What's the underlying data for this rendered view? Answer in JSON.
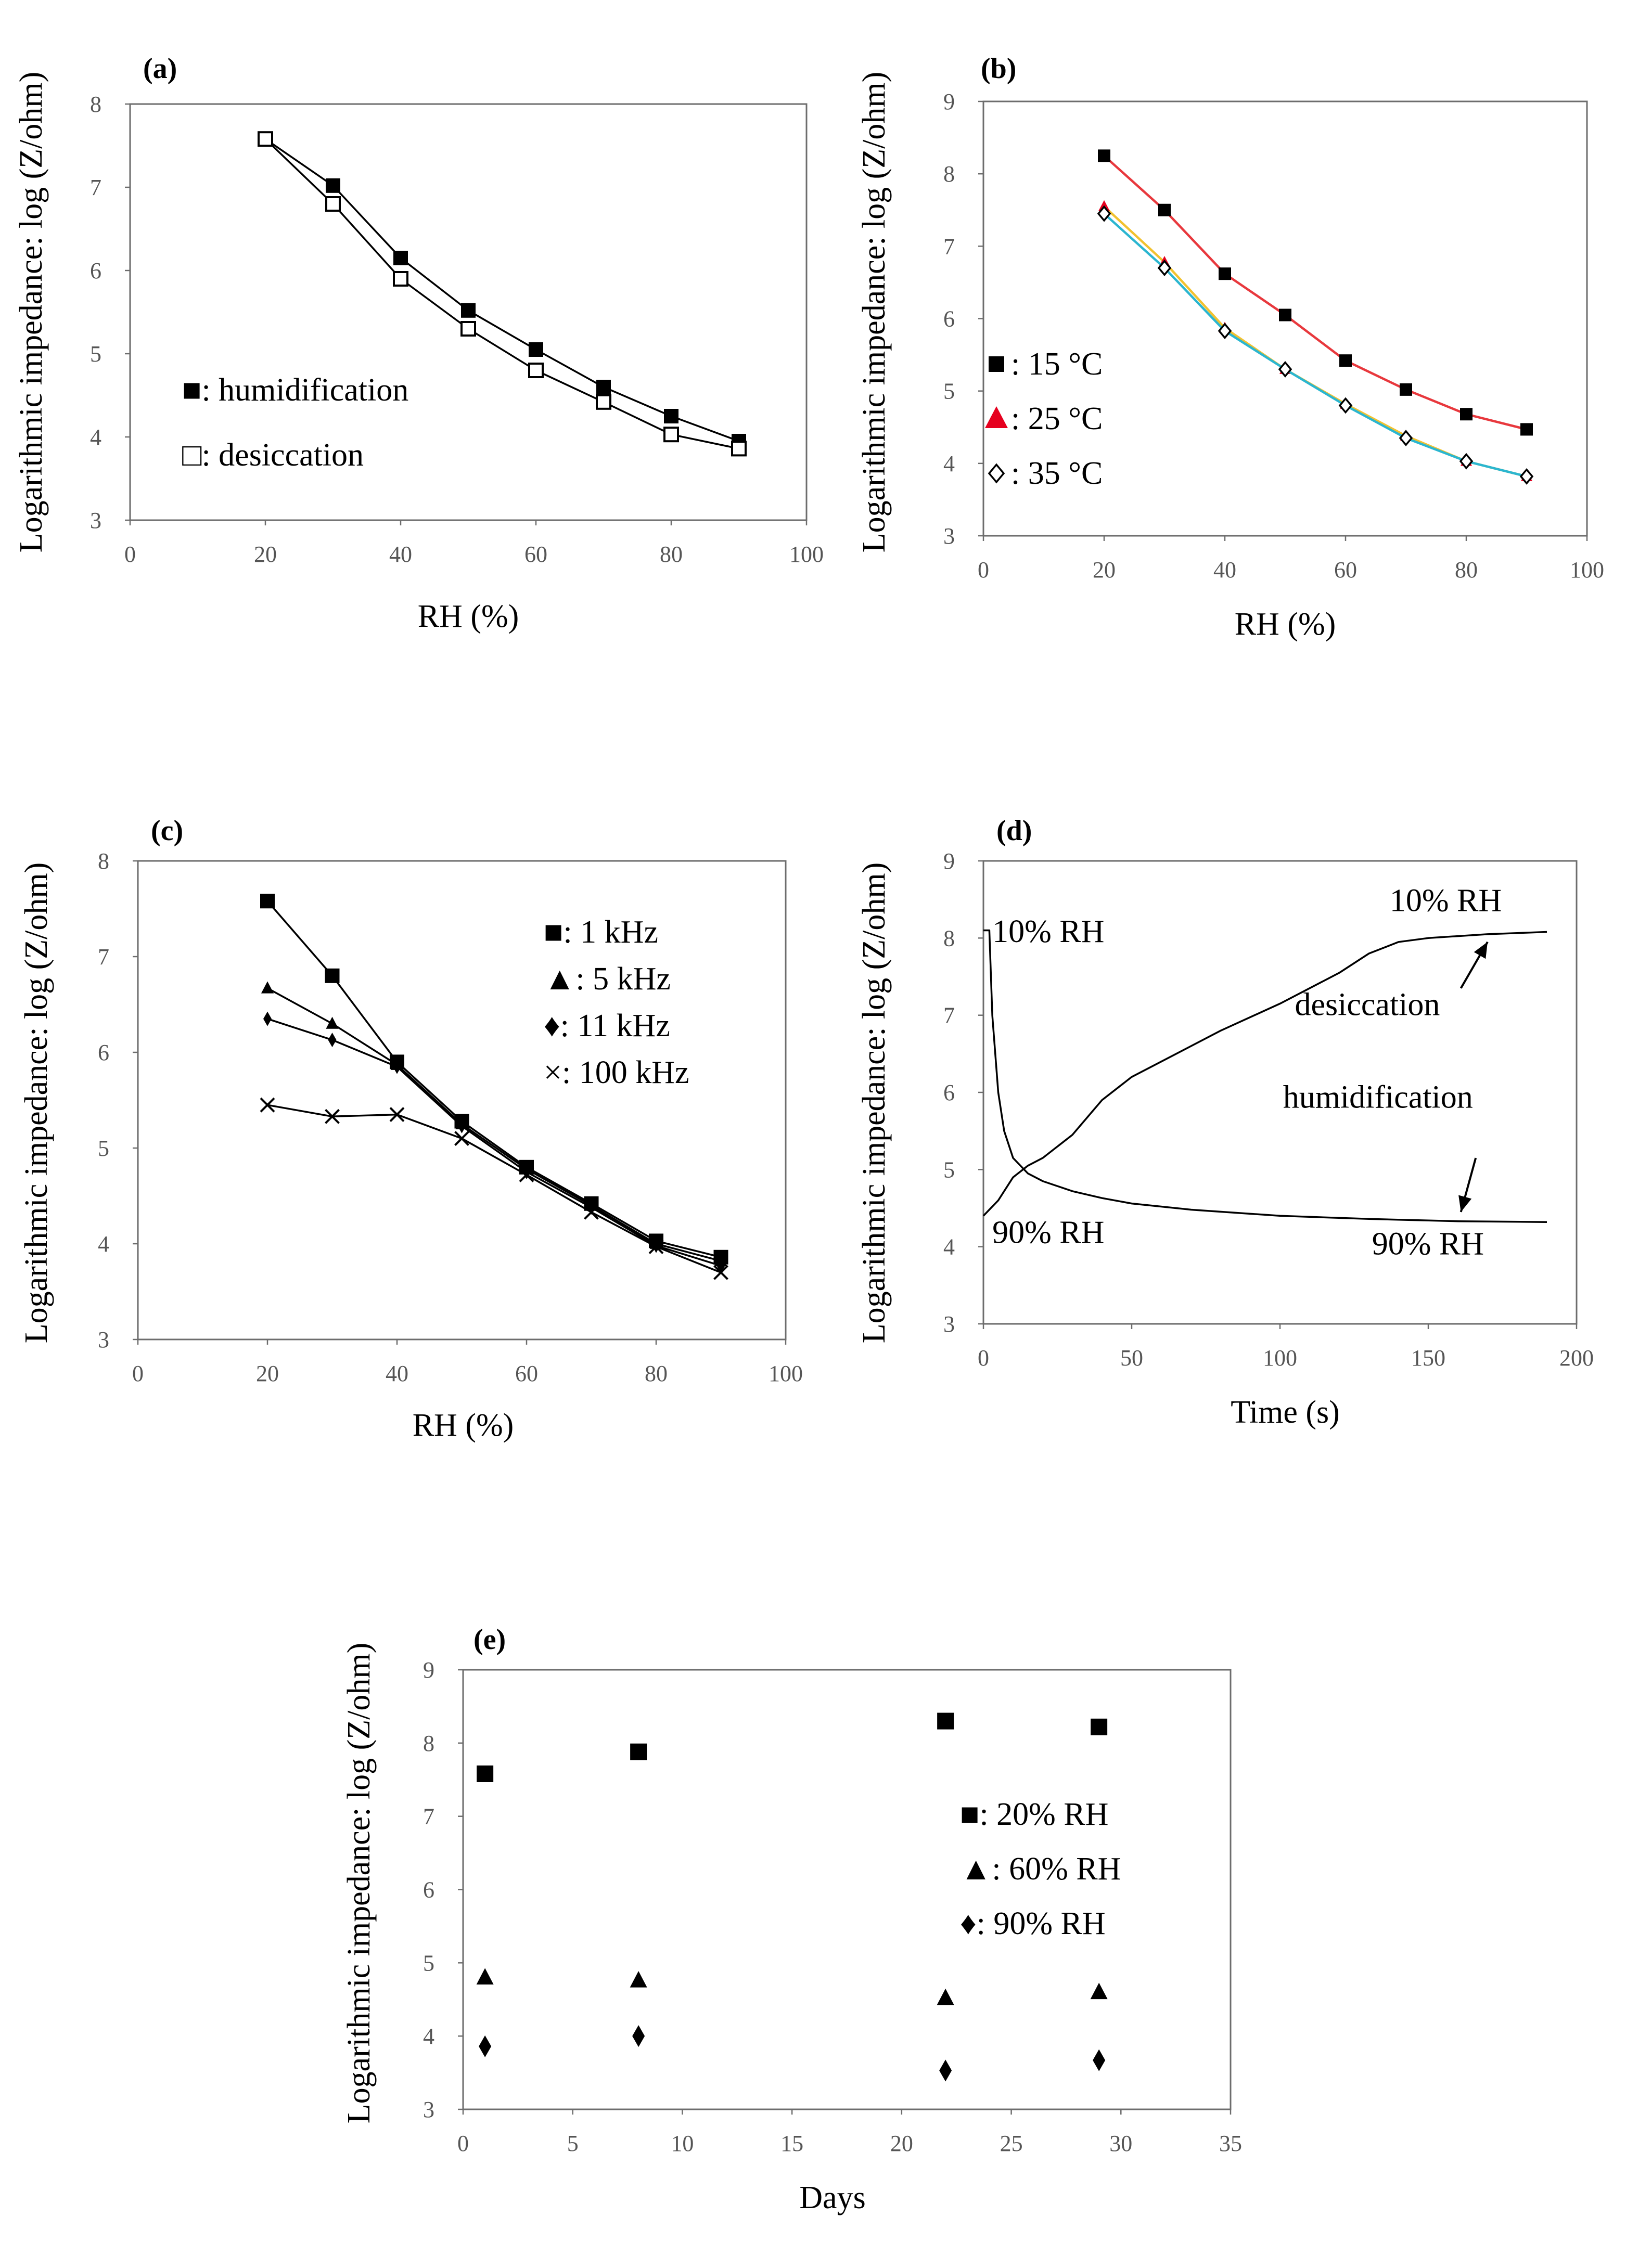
{
  "figure_title": "",
  "chart_data": [
    {
      "id": "a",
      "type": "line",
      "panel_label": "(a)",
      "xlabel": "RH (%)",
      "ylabel": "Logarithmic impedance: log (Z/ohm)",
      "xlim": [
        0,
        100
      ],
      "ylim": [
        3,
        8
      ],
      "xticks": [
        0,
        20,
        40,
        60,
        80,
        100
      ],
      "yticks": [
        3,
        4,
        5,
        6,
        7,
        8
      ],
      "series": [
        {
          "name": "humidification",
          "legend": "■: humidification",
          "marker": "square-filled",
          "color": "#000000",
          "x": [
            20,
            30,
            40,
            50,
            60,
            70,
            80,
            90
          ],
          "y": [
            7.58,
            7.02,
            6.15,
            5.52,
            5.05,
            4.6,
            4.25,
            3.95
          ]
        },
        {
          "name": "desiccation",
          "legend": "□: desiccation",
          "marker": "square-open",
          "color": "#000000",
          "x": [
            20,
            30,
            40,
            50,
            60,
            70,
            80,
            90
          ],
          "y": [
            7.58,
            6.8,
            5.9,
            5.3,
            4.8,
            4.42,
            4.03,
            3.86
          ]
        }
      ]
    },
    {
      "id": "b",
      "type": "line",
      "panel_label": "(b)",
      "xlabel": "RH (%)",
      "ylabel": "Logarithmic impedance: log (Z/ohm)",
      "xlim": [
        0,
        100
      ],
      "ylim": [
        3,
        9
      ],
      "xticks": [
        0,
        20,
        40,
        60,
        80,
        100
      ],
      "yticks": [
        3,
        4,
        5,
        6,
        7,
        8,
        9
      ],
      "series": [
        {
          "name": "15 °C",
          "legend": ": 15 °C",
          "marker": "square-filled",
          "color": "#e8383d",
          "markerColor": "#000000",
          "x": [
            20,
            30,
            40,
            50,
            60,
            70,
            80,
            90
          ],
          "y": [
            8.25,
            7.5,
            6.62,
            6.05,
            5.42,
            5.02,
            4.68,
            4.47
          ]
        },
        {
          "name": "25 °C",
          "legend": ": 25 °C",
          "marker": "triangle-filled",
          "color": "#f2c230",
          "markerColor": "#e6001f",
          "x": [
            20,
            30,
            40,
            50,
            60,
            70,
            80,
            90
          ],
          "y": [
            7.55,
            6.78,
            5.87,
            5.3,
            4.82,
            4.38,
            4.03,
            3.82
          ]
        },
        {
          "name": "35 °C",
          "legend": ": 35 °C",
          "marker": "diamond-open",
          "color": "#2bb6d0",
          "markerColor": "#000000",
          "x": [
            20,
            30,
            40,
            50,
            60,
            70,
            80,
            90
          ],
          "y": [
            7.45,
            6.7,
            5.83,
            5.3,
            4.8,
            4.35,
            4.03,
            3.82
          ]
        }
      ]
    },
    {
      "id": "c",
      "type": "line",
      "panel_label": "(c)",
      "xlabel": "RH (%)",
      "ylabel": "Logarithmic impedance: log (Z/ohm)",
      "xlim": [
        0,
        100
      ],
      "ylim": [
        3,
        8
      ],
      "xticks": [
        0,
        20,
        40,
        60,
        80,
        100
      ],
      "yticks": [
        3,
        4,
        5,
        6,
        7,
        8
      ],
      "series": [
        {
          "name": "1 kHz",
          "legend": "■: 1 kHz",
          "marker": "square-filled",
          "color": "#000000",
          "x": [
            20,
            30,
            40,
            50,
            60,
            70,
            80,
            90
          ],
          "y": [
            7.58,
            6.8,
            5.9,
            5.28,
            4.8,
            4.42,
            4.03,
            3.86
          ]
        },
        {
          "name": "5 kHz",
          "legend": "▲: 5 kHz",
          "marker": "triangle-filled",
          "color": "#000000",
          "x": [
            20,
            30,
            40,
            50,
            60,
            70,
            80,
            90
          ],
          "y": [
            6.67,
            6.3,
            5.87,
            5.25,
            4.78,
            4.4,
            4.0,
            3.82
          ]
        },
        {
          "name": "11 kHz",
          "legend": "♦: 11 kHz",
          "marker": "diamond-filled",
          "color": "#000000",
          "x": [
            20,
            30,
            40,
            50,
            60,
            70,
            80,
            90
          ],
          "y": [
            6.35,
            6.13,
            5.85,
            5.23,
            4.75,
            4.38,
            3.98,
            3.77
          ]
        },
        {
          "name": "100 kHz",
          "legend": "×: 100 kHz",
          "marker": "cross",
          "color": "#000000",
          "x": [
            20,
            30,
            40,
            50,
            60,
            70,
            80,
            90
          ],
          "y": [
            5.45,
            5.33,
            5.35,
            5.1,
            4.72,
            4.33,
            3.97,
            3.7
          ]
        }
      ]
    },
    {
      "id": "d",
      "type": "line",
      "panel_label": "(d)",
      "xlabel": "Time (s)",
      "ylabel": "Logarithmic impedance: log (Z/ohm)",
      "xlim": [
        0,
        200
      ],
      "ylim": [
        3,
        9
      ],
      "xticks": [
        0,
        50,
        100,
        150,
        200
      ],
      "yticks": [
        3,
        4,
        5,
        6,
        7,
        8,
        9
      ],
      "series": [
        {
          "name": "humidification",
          "marker": "none",
          "color": "#000000",
          "x": [
            0,
            2,
            3,
            5,
            7,
            10,
            15,
            20,
            30,
            40,
            50,
            70,
            100,
            130,
            160,
            190
          ],
          "y": [
            8.1,
            8.1,
            7.0,
            6.0,
            5.5,
            5.15,
            4.95,
            4.85,
            4.72,
            4.63,
            4.56,
            4.48,
            4.4,
            4.36,
            4.33,
            4.32
          ]
        },
        {
          "name": "desiccation",
          "marker": "none",
          "color": "#000000",
          "x": [
            0,
            5,
            10,
            15,
            20,
            30,
            40,
            50,
            60,
            80,
            100,
            120,
            130,
            140,
            150,
            170,
            190
          ],
          "y": [
            4.4,
            4.6,
            4.9,
            5.05,
            5.15,
            5.45,
            5.9,
            6.2,
            6.4,
            6.8,
            7.15,
            7.55,
            7.8,
            7.95,
            8.0,
            8.05,
            8.08
          ]
        }
      ],
      "annotations": [
        {
          "text": "10% RH",
          "x": 3,
          "y": 7.95
        },
        {
          "text": "10% RH",
          "x": 137,
          "y": 8.35
        },
        {
          "text": "desiccation",
          "x": 105,
          "y": 7.0
        },
        {
          "text": "humidification",
          "x": 101,
          "y": 5.8
        },
        {
          "text": "90% RH",
          "x": 3,
          "y": 4.05
        },
        {
          "text": "90% RH",
          "x": 131,
          "y": 3.9
        }
      ]
    },
    {
      "id": "e",
      "type": "scatter",
      "panel_label": "(e)",
      "xlabel": "Days",
      "ylabel": "Logarithmic impedance: log (Z/ohm)",
      "xlim": [
        0,
        35
      ],
      "ylim": [
        3,
        9
      ],
      "xticks": [
        0,
        5,
        10,
        15,
        20,
        25,
        30,
        35
      ],
      "yticks": [
        3,
        4,
        5,
        6,
        7,
        8,
        9
      ],
      "series": [
        {
          "name": "20% RH",
          "legend": "■: 20% RH",
          "marker": "square-filled",
          "color": "#000000",
          "x": [
            1,
            8,
            22,
            29
          ],
          "y": [
            7.58,
            7.88,
            8.3,
            8.22
          ]
        },
        {
          "name": "60% RH",
          "legend": "▲: 60% RH",
          "marker": "triangle-filled",
          "color": "#000000",
          "x": [
            1,
            8,
            22,
            29
          ],
          "y": [
            4.8,
            4.76,
            4.52,
            4.6
          ]
        },
        {
          "name": "90% RH",
          "legend": "♦: 90% RH",
          "marker": "diamond-filled",
          "color": "#000000",
          "x": [
            1,
            8,
            22,
            29
          ],
          "y": [
            3.86,
            4.0,
            3.53,
            3.67
          ]
        }
      ]
    }
  ]
}
